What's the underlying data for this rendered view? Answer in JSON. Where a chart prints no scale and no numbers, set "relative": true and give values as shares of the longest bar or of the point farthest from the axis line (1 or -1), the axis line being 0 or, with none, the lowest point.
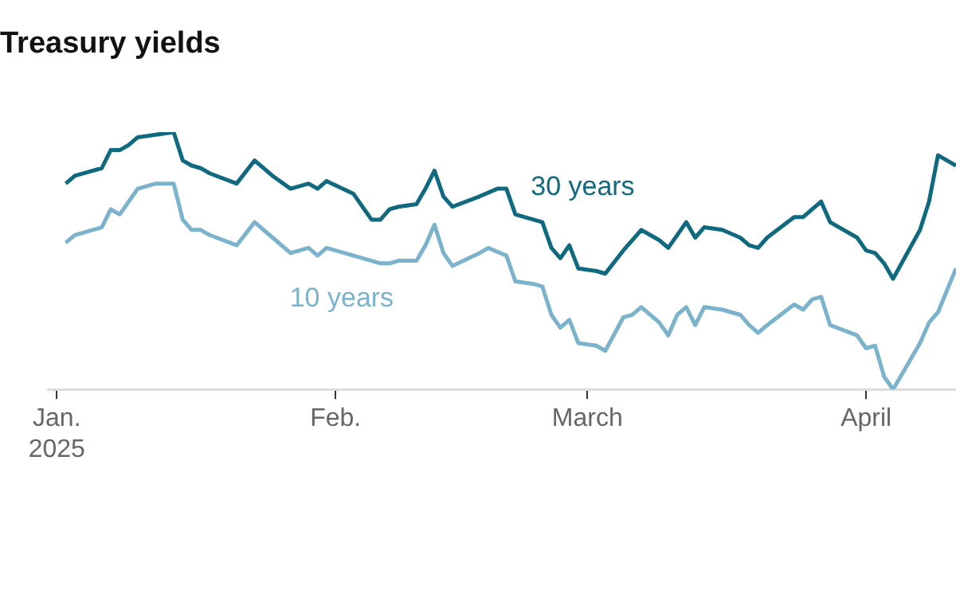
{
  "chart_data": {
    "type": "line",
    "title": "Treasury yields",
    "relative": true,
    "xlim": [
      "2024-12-31",
      "2025-04-11"
    ],
    "xticks": [
      {
        "value": "2025-01-01",
        "label": "Jan.\n2025"
      },
      {
        "value": "2025-02-01",
        "label": "Feb."
      },
      {
        "value": "2025-03-01",
        "label": "March"
      },
      {
        "value": "2025-04-01",
        "label": "April"
      }
    ],
    "line_style": "solid",
    "marker": "none",
    "series": [
      {
        "name": "30 years",
        "color": "#0f6a80",
        "x": [
          "2025-01-02",
          "2025-01-03",
          "2025-01-04",
          "2025-01-06",
          "2025-01-07",
          "2025-01-08",
          "2025-01-09",
          "2025-01-10",
          "2025-01-12",
          "2025-01-14",
          "2025-01-15",
          "2025-01-16",
          "2025-01-17",
          "2025-01-18",
          "2025-01-21",
          "2025-01-23",
          "2025-01-25",
          "2025-01-27",
          "2025-01-29",
          "2025-01-30",
          "2025-01-31",
          "2025-02-03",
          "2025-02-05",
          "2025-02-06",
          "2025-02-07",
          "2025-02-08",
          "2025-02-10",
          "2025-02-11",
          "2025-02-12",
          "2025-02-13",
          "2025-02-14",
          "2025-02-17",
          "2025-02-19",
          "2025-02-20",
          "2025-02-21",
          "2025-02-22",
          "2025-02-24",
          "2025-02-25",
          "2025-02-26",
          "2025-02-27",
          "2025-02-28",
          "2025-03-02",
          "2025-03-03",
          "2025-03-05",
          "2025-03-06",
          "2025-03-07",
          "2025-03-08",
          "2025-03-09",
          "2025-03-10",
          "2025-03-12",
          "2025-03-13",
          "2025-03-14",
          "2025-03-16",
          "2025-03-18",
          "2025-03-19",
          "2025-03-20",
          "2025-03-21",
          "2025-03-24",
          "2025-03-25",
          "2025-03-26",
          "2025-03-27",
          "2025-03-28",
          "2025-03-31",
          "2025-04-01",
          "2025-04-02",
          "2025-04-03",
          "2025-04-04",
          "2025-04-07",
          "2025-04-08",
          "2025-04-09",
          "2025-04-11"
        ],
        "values": [
          0.8,
          0.83,
          0.84,
          0.86,
          0.93,
          0.93,
          0.95,
          0.98,
          0.99,
          1.0,
          0.89,
          0.87,
          0.86,
          0.84,
          0.8,
          0.89,
          0.83,
          0.78,
          0.8,
          0.78,
          0.81,
          0.76,
          0.66,
          0.66,
          0.7,
          0.71,
          0.72,
          0.78,
          0.85,
          0.75,
          0.71,
          0.75,
          0.78,
          0.78,
          0.68,
          0.67,
          0.65,
          0.55,
          0.51,
          0.56,
          0.47,
          0.46,
          0.45,
          0.54,
          0.58,
          0.62,
          0.6,
          0.58,
          0.55,
          0.65,
          0.59,
          0.63,
          0.62,
          0.59,
          0.56,
          0.55,
          0.59,
          0.67,
          0.67,
          0.7,
          0.73,
          0.65,
          0.59,
          0.54,
          0.53,
          0.49,
          0.43,
          0.62,
          0.73,
          0.91,
          0.87
        ]
      },
      {
        "name": "10 years",
        "color": "#7ab3cb",
        "x": [
          "2025-01-02",
          "2025-01-03",
          "2025-01-04",
          "2025-01-06",
          "2025-01-07",
          "2025-01-08",
          "2025-01-09",
          "2025-01-10",
          "2025-01-12",
          "2025-01-14",
          "2025-01-15",
          "2025-01-16",
          "2025-01-17",
          "2025-01-18",
          "2025-01-21",
          "2025-01-23",
          "2025-01-25",
          "2025-01-27",
          "2025-01-29",
          "2025-01-30",
          "2025-01-31",
          "2025-02-03",
          "2025-02-05",
          "2025-02-06",
          "2025-02-07",
          "2025-02-08",
          "2025-02-10",
          "2025-02-11",
          "2025-02-12",
          "2025-02-13",
          "2025-02-14",
          "2025-02-17",
          "2025-02-18",
          "2025-02-20",
          "2025-02-21",
          "2025-02-23",
          "2025-02-24",
          "2025-02-25",
          "2025-02-26",
          "2025-02-27",
          "2025-02-28",
          "2025-03-02",
          "2025-03-03",
          "2025-03-05",
          "2025-03-06",
          "2025-03-07",
          "2025-03-09",
          "2025-03-10",
          "2025-03-11",
          "2025-03-12",
          "2025-03-13",
          "2025-03-14",
          "2025-03-16",
          "2025-03-18",
          "2025-03-19",
          "2025-03-20",
          "2025-03-21",
          "2025-03-24",
          "2025-03-25",
          "2025-03-26",
          "2025-03-27",
          "2025-03-28",
          "2025-03-31",
          "2025-04-01",
          "2025-04-02",
          "2025-04-03",
          "2025-04-04",
          "2025-04-07",
          "2025-04-08",
          "2025-04-09",
          "2025-04-11"
        ],
        "values": [
          0.57,
          0.6,
          0.61,
          0.63,
          0.7,
          0.68,
          0.73,
          0.78,
          0.8,
          0.8,
          0.66,
          0.62,
          0.62,
          0.6,
          0.56,
          0.65,
          0.59,
          0.53,
          0.55,
          0.52,
          0.55,
          0.52,
          0.5,
          0.49,
          0.49,
          0.5,
          0.5,
          0.56,
          0.64,
          0.53,
          0.48,
          0.53,
          0.55,
          0.52,
          0.42,
          0.41,
          0.4,
          0.29,
          0.24,
          0.27,
          0.18,
          0.17,
          0.15,
          0.28,
          0.29,
          0.32,
          0.26,
          0.21,
          0.29,
          0.32,
          0.25,
          0.32,
          0.31,
          0.29,
          0.25,
          0.22,
          0.25,
          0.33,
          0.31,
          0.35,
          0.36,
          0.25,
          0.21,
          0.16,
          0.17,
          0.05,
          0.0,
          0.18,
          0.26,
          0.3,
          0.47
        ]
      }
    ]
  }
}
